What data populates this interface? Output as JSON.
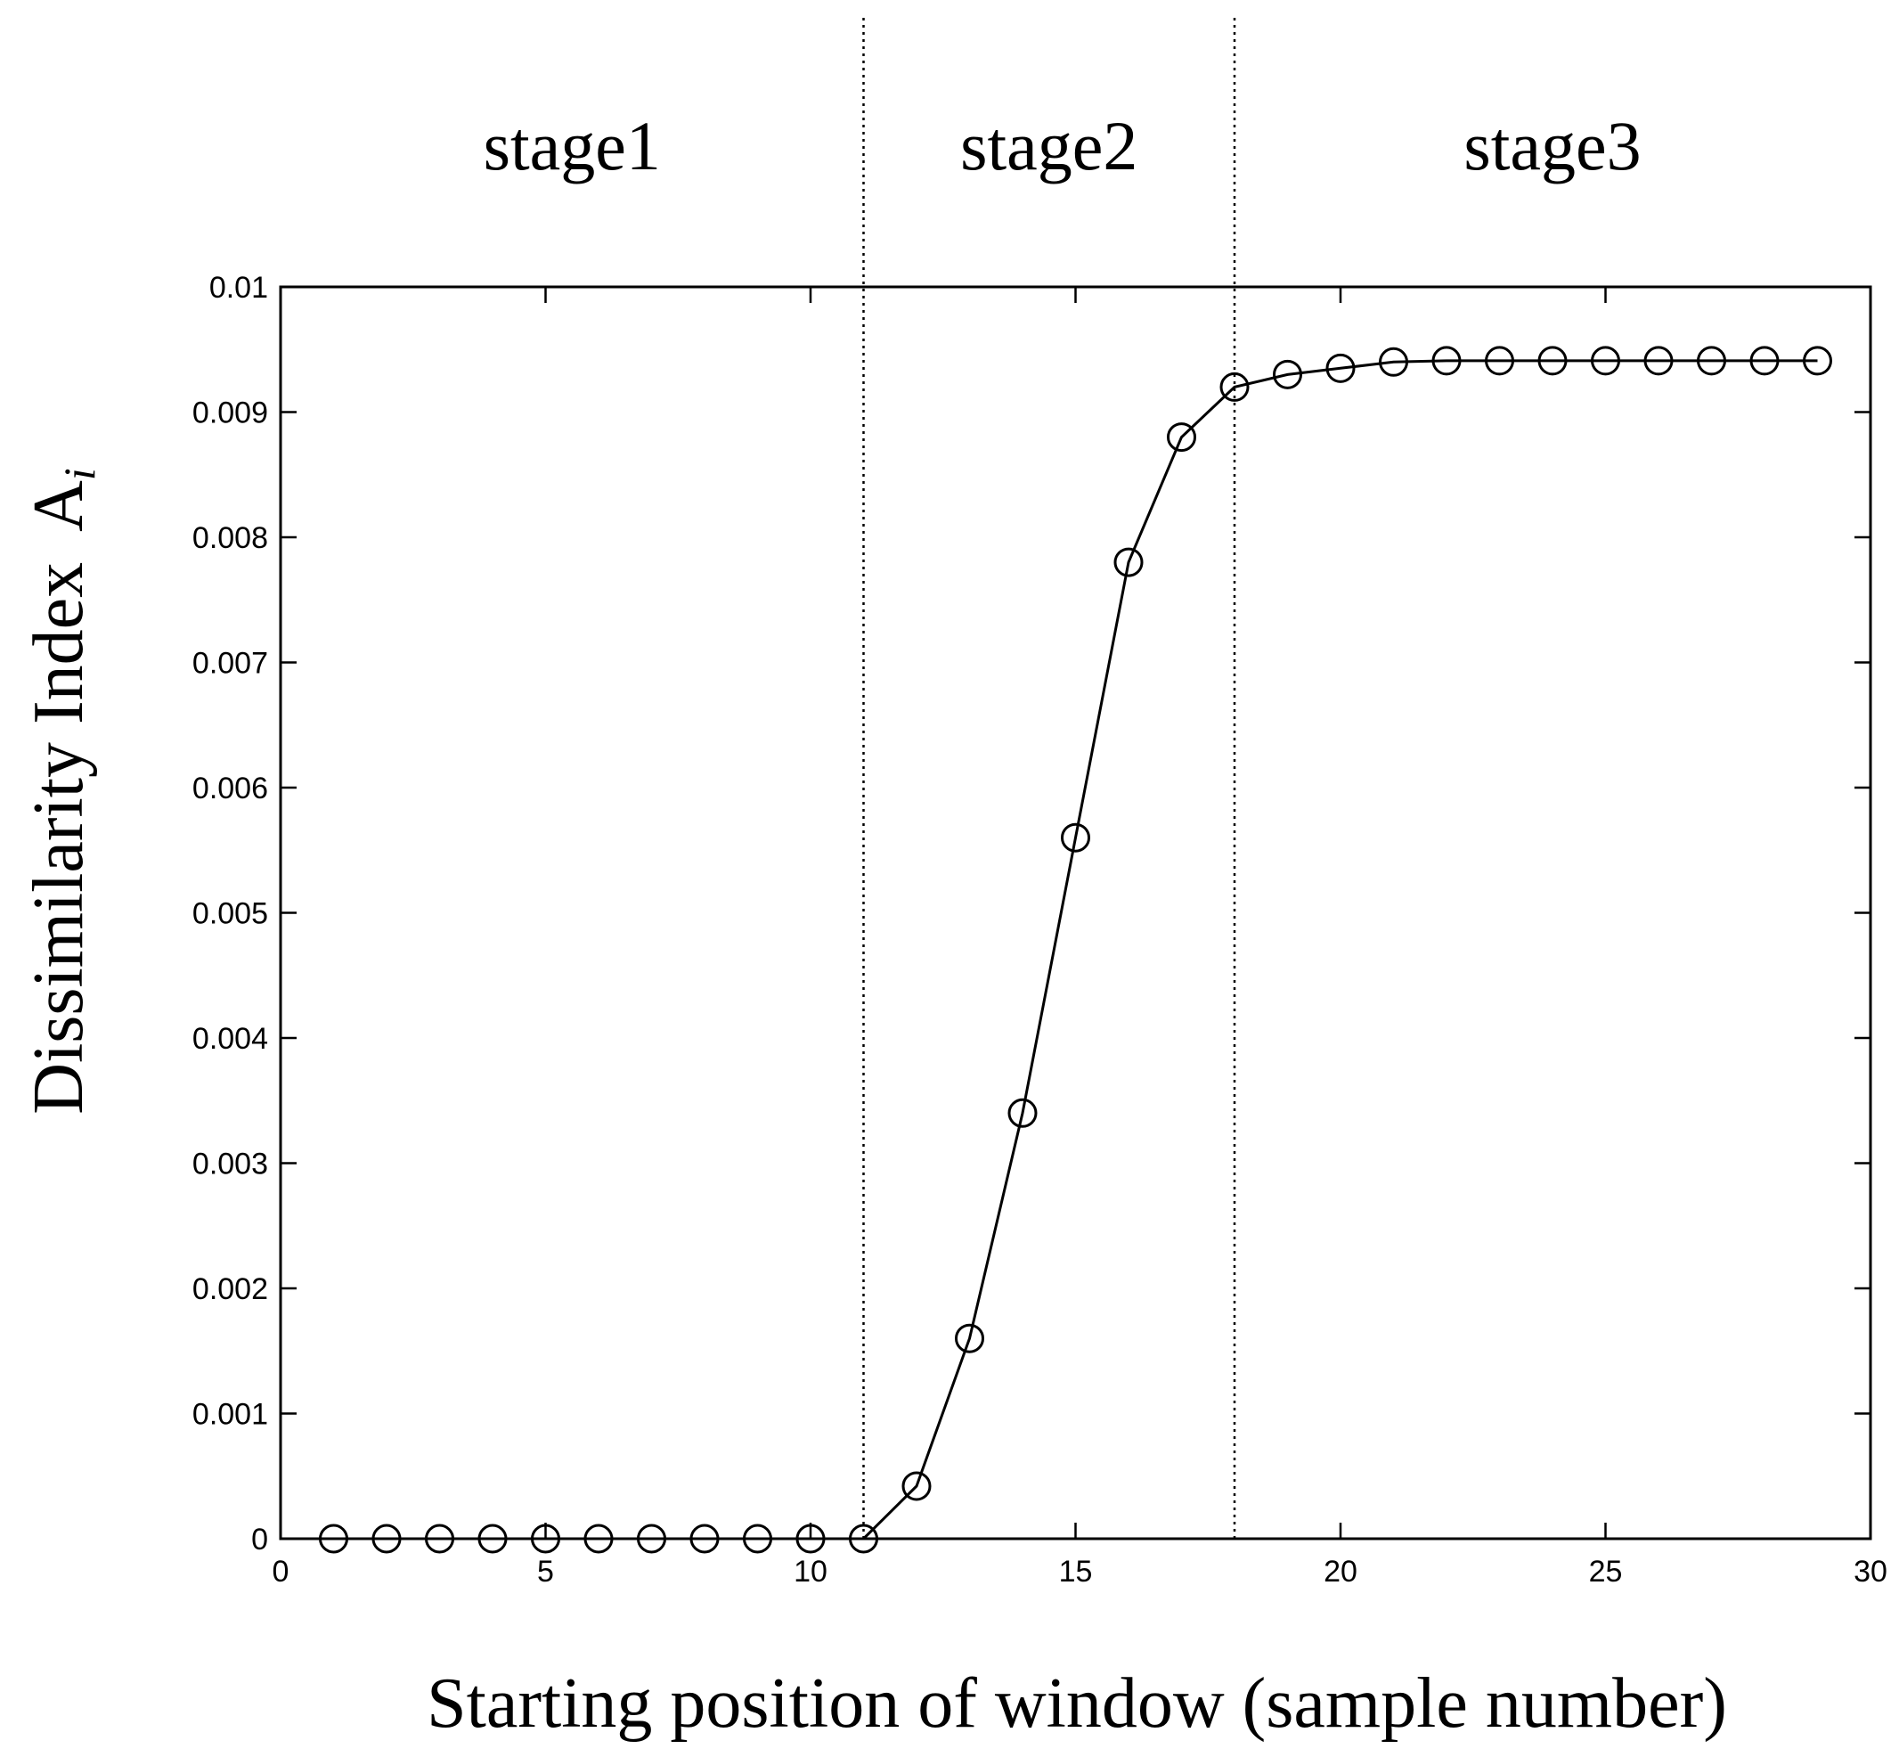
{
  "chart_data": {
    "type": "line",
    "title": "",
    "xlabel": "Starting position of window (sample number)",
    "ylabel": "Dissimilarity Index",
    "ylabel_symbol": "A",
    "ylabel_subscript": "i",
    "xlim": [
      0,
      30
    ],
    "ylim": [
      0,
      0.01
    ],
    "x_ticks": [
      0,
      5,
      10,
      15,
      20,
      25,
      30
    ],
    "x_tick_labels": [
      "0",
      "5",
      "10",
      "15",
      "20",
      "25",
      "30"
    ],
    "y_ticks": [
      0,
      0.001,
      0.002,
      0.003,
      0.004,
      0.005,
      0.006,
      0.007,
      0.008,
      0.009,
      0.01
    ],
    "y_tick_labels": [
      "0",
      "0.001",
      "0.002",
      "0.003",
      "0.004",
      "0.005",
      "0.006",
      "0.007",
      "0.008",
      "0.009",
      "0.01"
    ],
    "grid": false,
    "marker": "open-circle",
    "line_color": "#000000",
    "series": [
      {
        "x": [
          1,
          2,
          3,
          4,
          5,
          6,
          7,
          8,
          9,
          10,
          11,
          12,
          13,
          14,
          15,
          16,
          17,
          18,
          19,
          20,
          21,
          22,
          23,
          24,
          25,
          26,
          27,
          28,
          29
        ],
        "values": [
          0,
          0,
          0,
          0,
          0,
          0,
          0,
          0,
          0,
          0,
          0,
          0.00042,
          0.0016,
          0.0034,
          0.0056,
          0.0078,
          0.0088,
          0.0092,
          0.0093,
          0.00935,
          0.0094,
          0.00941,
          0.00941,
          0.00941,
          0.00941,
          0.00941,
          0.00941,
          0.00941,
          0.00941
        ]
      }
    ],
    "stage_boundaries": [
      11,
      18
    ],
    "stages": [
      {
        "label": "stage1",
        "x_start": 0,
        "x_end": 11
      },
      {
        "label": "stage2",
        "x_start": 11,
        "x_end": 18
      },
      {
        "label": "stage3",
        "x_start": 18,
        "x_end": 30
      }
    ]
  }
}
